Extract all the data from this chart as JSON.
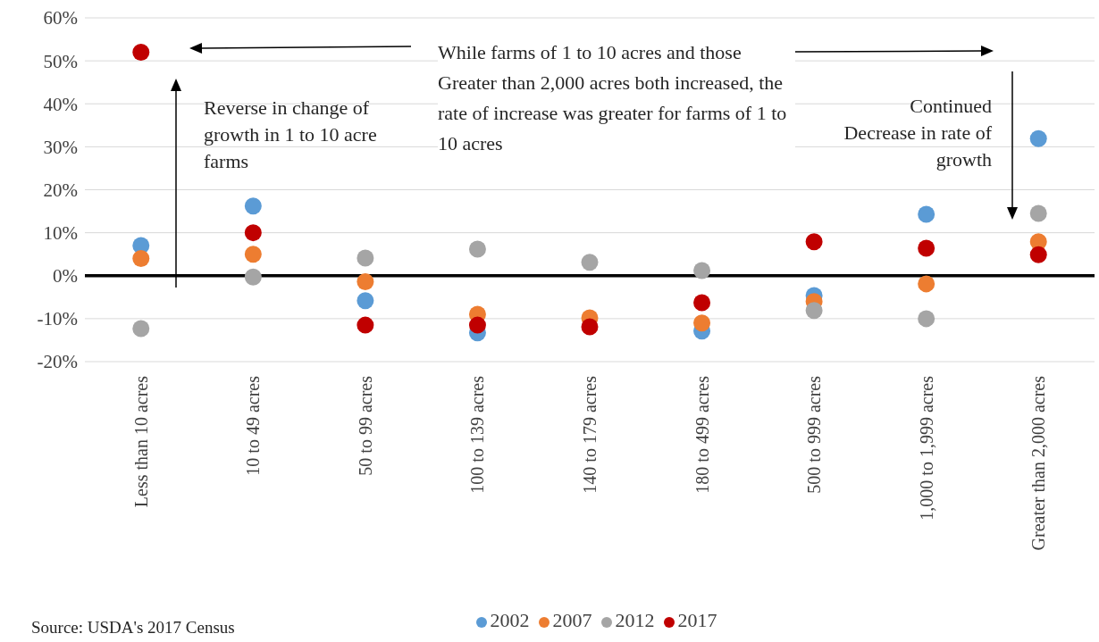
{
  "chart_data": {
    "type": "scatter",
    "categories": [
      "Less than 10 acres",
      "10 to 49 acres",
      "50 to 99 acres",
      "100 to 139 acres",
      "140 to 179 acres",
      "180 to 499 acres",
      "500 to 999 acres",
      "1,000 to 1,999 acres",
      "Greater than 2,000 acres"
    ],
    "series": [
      {
        "name": "2002",
        "color": "#5b9bd5",
        "values": [
          7,
          16.2,
          -5.8,
          -13.3,
          null,
          -12.9,
          -4.6,
          14.3,
          31.9
        ]
      },
      {
        "name": "2007",
        "color": "#ed7d31",
        "values": [
          4,
          5,
          -1.4,
          -9,
          -9.8,
          -11,
          -6,
          -1.9,
          7.9
        ]
      },
      {
        "name": "2012",
        "color": "#a5a5a5",
        "values": [
          -12.3,
          -0.3,
          4.1,
          6.2,
          3.1,
          1.2,
          -8.1,
          -10,
          14.5
        ]
      },
      {
        "name": "2017",
        "color": "#c00000",
        "values": [
          52,
          10,
          -11.5,
          -11.5,
          -11.9,
          -6.3,
          7.9,
          6.4,
          4.9
        ]
      }
    ],
    "ylim": [
      -20,
      60
    ],
    "yticks": [
      {
        "value": -20,
        "label": "-20%"
      },
      {
        "value": -10,
        "label": "-10%"
      },
      {
        "value": 0,
        "label": "0%"
      },
      {
        "value": 10,
        "label": "10%"
      },
      {
        "value": 20,
        "label": "20%"
      },
      {
        "value": 30,
        "label": "30%"
      },
      {
        "value": 40,
        "label": "40%"
      },
      {
        "value": 50,
        "label": "50%"
      },
      {
        "value": 60,
        "label": "60%"
      }
    ],
    "grid": "y",
    "legend": "bottom",
    "marker": "circle",
    "ref_lines": [
      {
        "axis": "y",
        "value": 0,
        "color": "#000000"
      }
    ],
    "annotations": [
      "While farms of 1 to 10 acres and those Greater than 2,000 acres both increased, the rate of increase was greater for farms of 1 to 10 acres",
      "Reverse in change of growth in 1 to 10 acre farms",
      "Continued Decrease in rate of growth",
      "Source: USDA's 2017 Census"
    ]
  }
}
